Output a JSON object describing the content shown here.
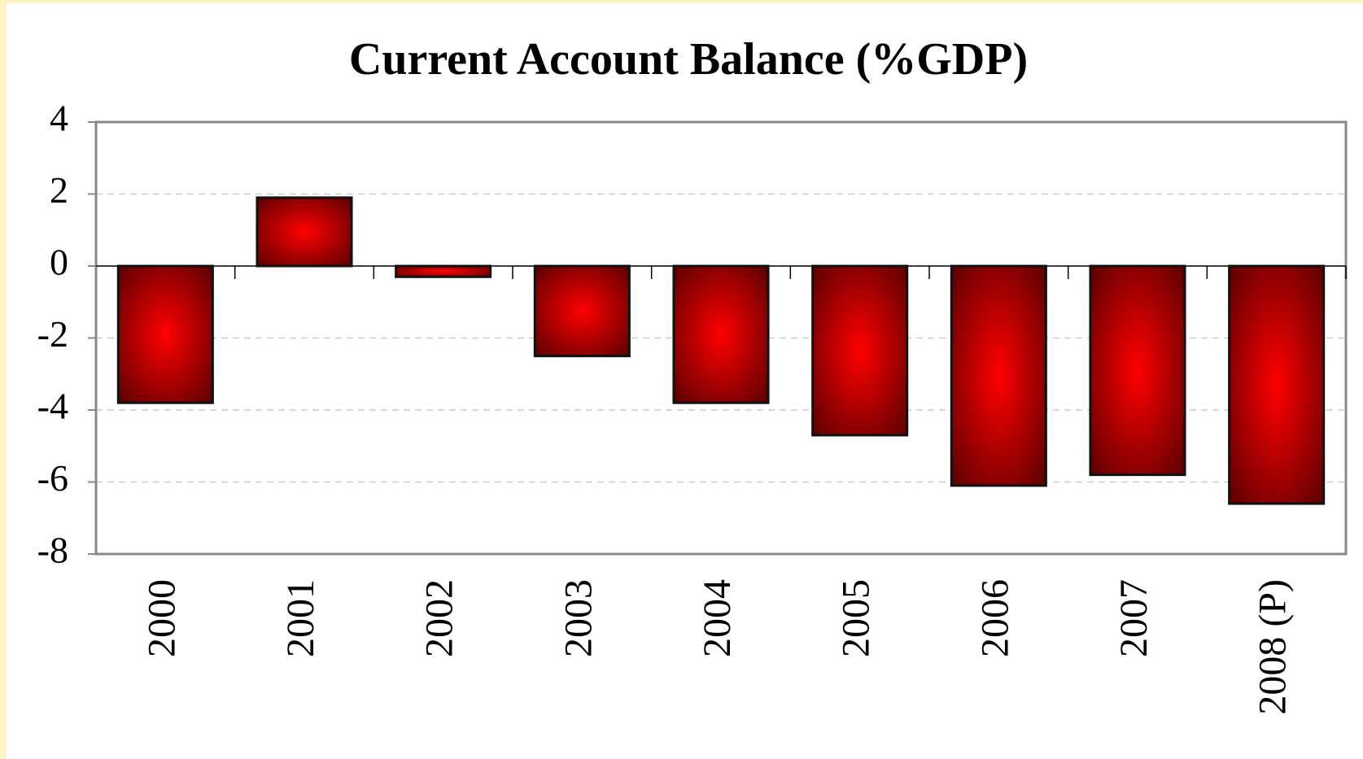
{
  "chart_data": {
    "type": "bar",
    "title": "Current Account Balance (%GDP)",
    "categories": [
      "2000",
      "2001",
      "2002",
      "2003",
      "2004",
      "2005",
      "2006",
      "2007",
      "2008 (P)"
    ],
    "values": [
      -3.8,
      1.9,
      -0.3,
      -2.5,
      -3.8,
      -4.7,
      -6.1,
      -5.8,
      -6.6
    ],
    "color": "#ff0000",
    "ylim": [
      -8,
      4
    ],
    "yticks": [
      -8,
      -6,
      -4,
      -2,
      0,
      2,
      4
    ],
    "grid": true
  }
}
